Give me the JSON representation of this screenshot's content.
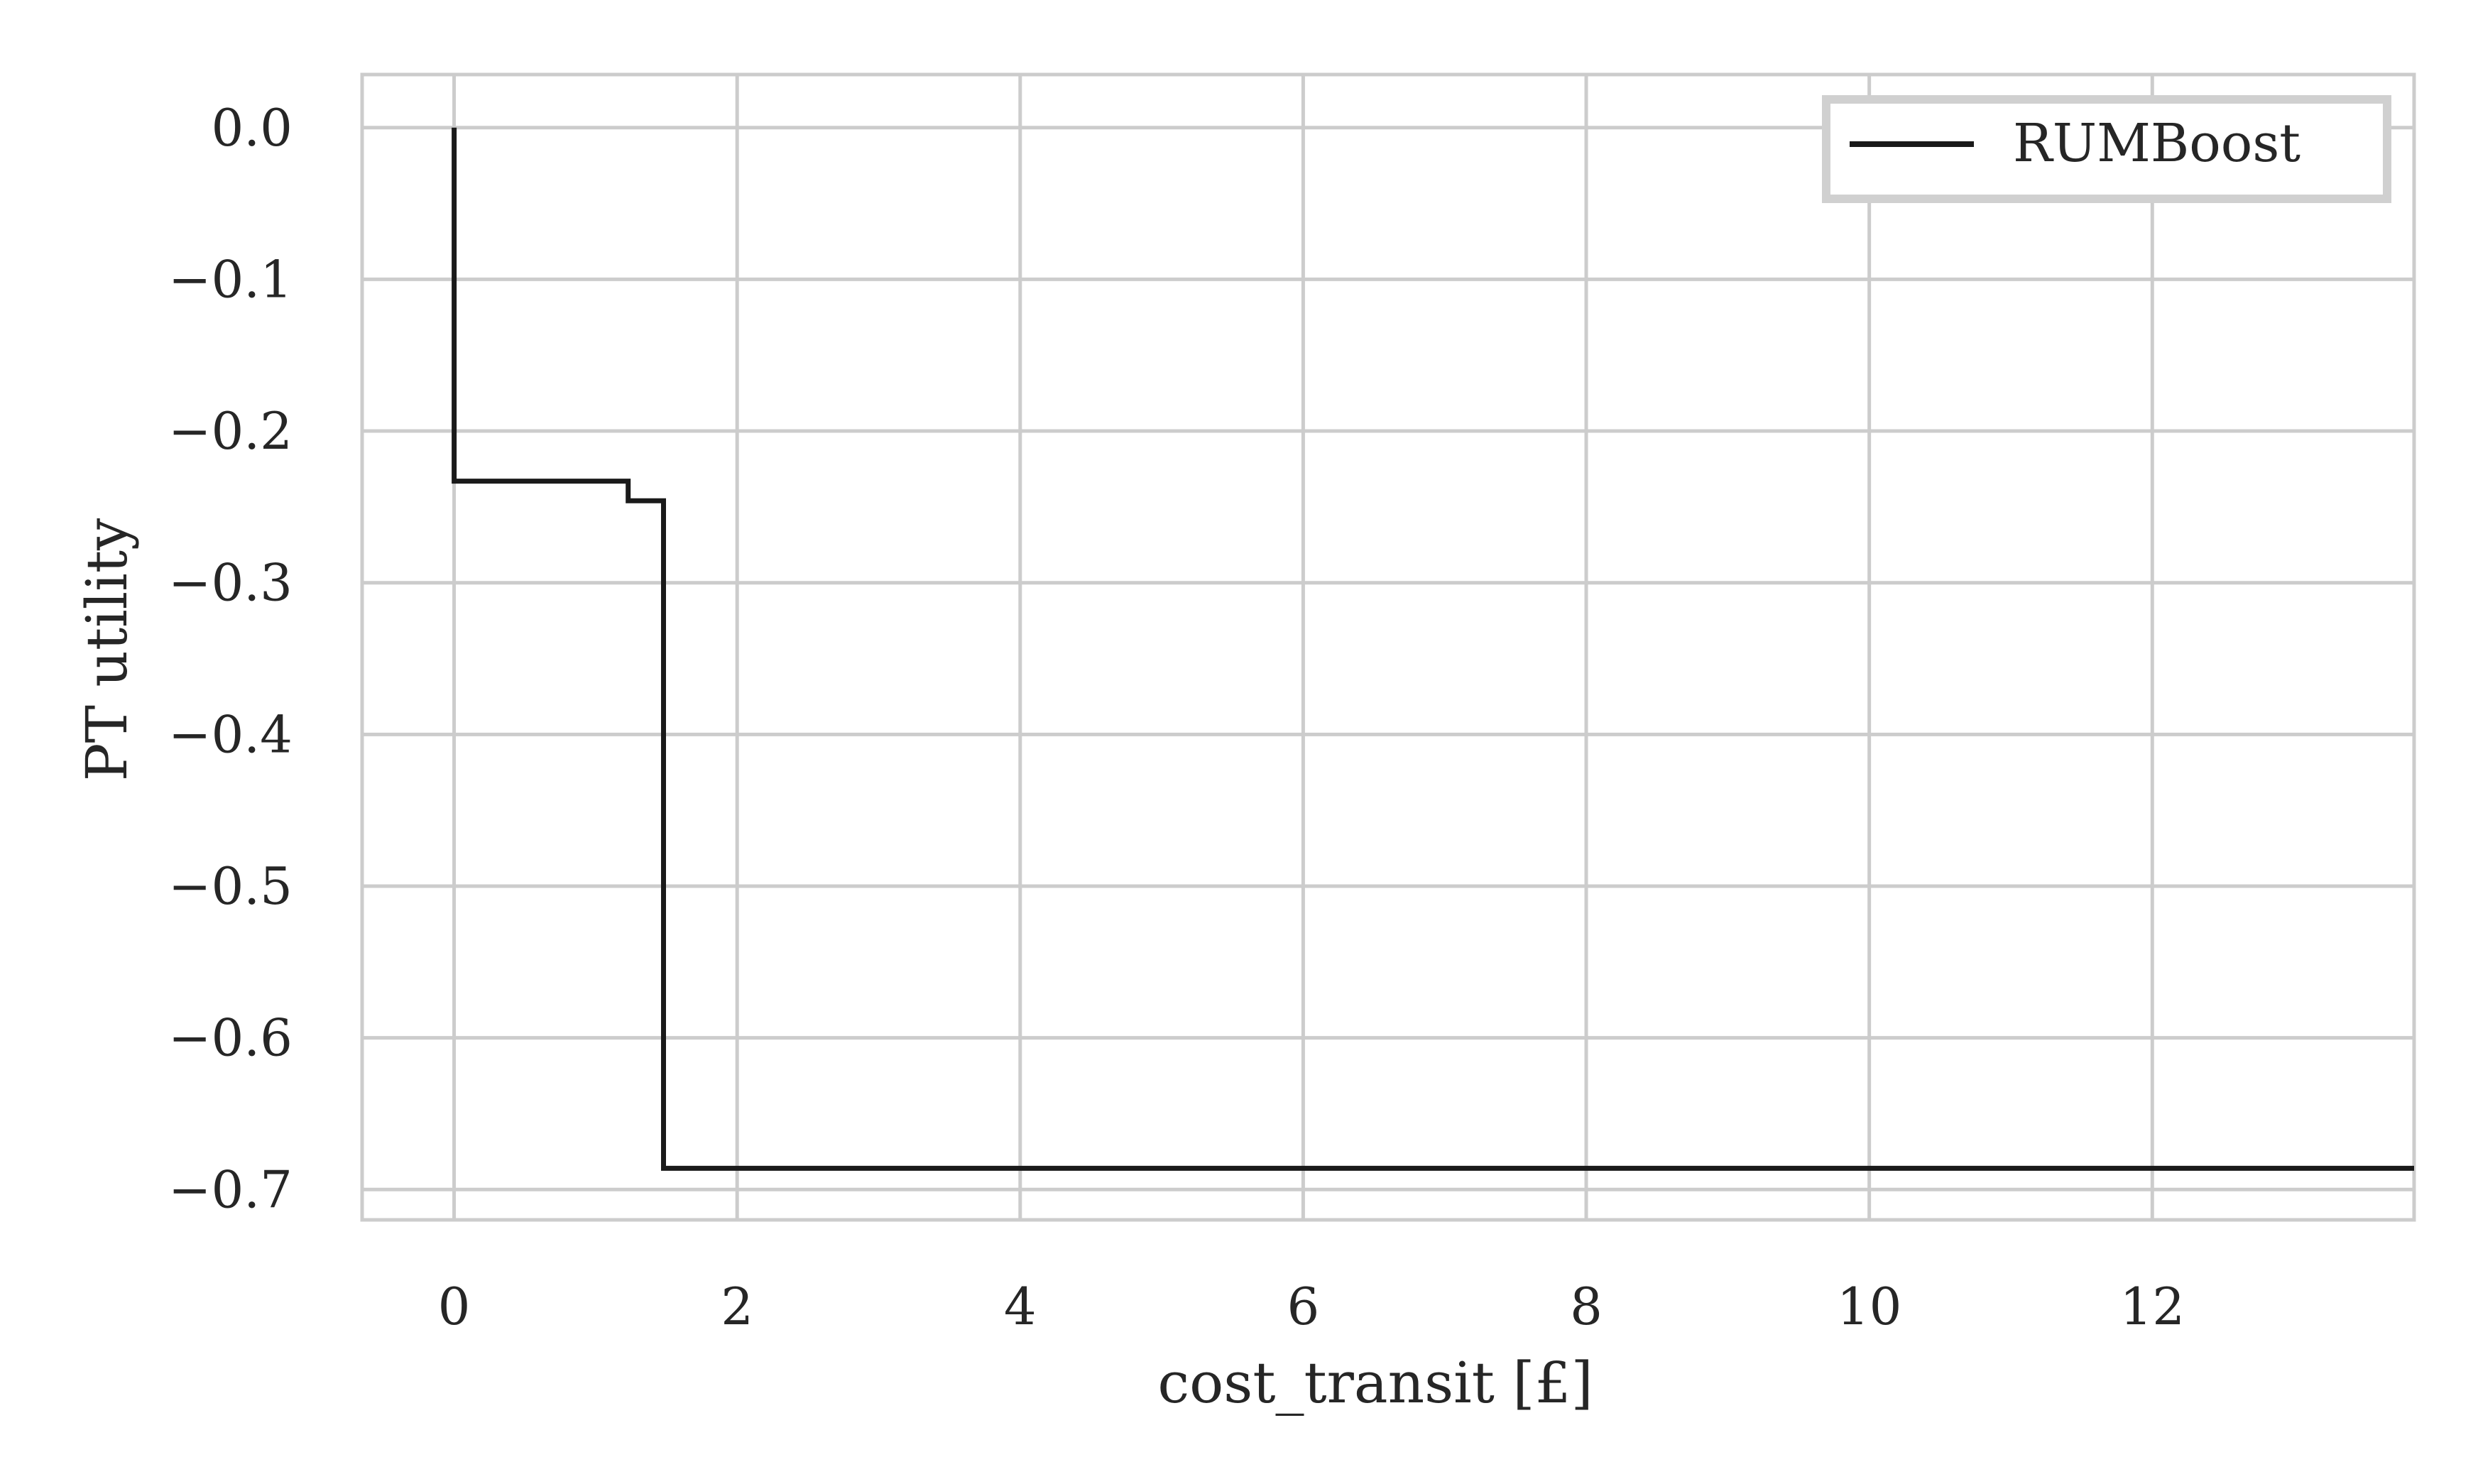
{
  "chart_data": {
    "type": "line",
    "step": true,
    "title": "",
    "xlabel": "cost_transit [£]",
    "ylabel": "PT utility",
    "xlim": [
      -0.65,
      13.85
    ],
    "ylim": [
      -0.72,
      0.035
    ],
    "xticks": [
      0,
      2,
      4,
      6,
      8,
      10,
      12
    ],
    "xtick_labels": [
      "0",
      "2",
      "4",
      "6",
      "8",
      "10",
      "12"
    ],
    "yticks": [
      0.0,
      -0.1,
      -0.2,
      -0.3,
      -0.4,
      -0.5,
      -0.6,
      -0.7
    ],
    "ytick_labels": [
      "0.0",
      "−0.1",
      "−0.2",
      "−0.3",
      "−0.4",
      "−0.5",
      "−0.6",
      "−0.7"
    ],
    "grid": true,
    "legend_position": "top-right",
    "series": [
      {
        "name": "RUMBoost",
        "color": "#1a1a1a",
        "points": [
          [
            0.0,
            0.0
          ],
          [
            0.0,
            -0.233
          ],
          [
            1.23,
            -0.233
          ],
          [
            1.23,
            -0.246
          ],
          [
            1.48,
            -0.246
          ],
          [
            1.48,
            -0.686
          ],
          [
            13.85,
            -0.686
          ]
        ]
      }
    ]
  }
}
